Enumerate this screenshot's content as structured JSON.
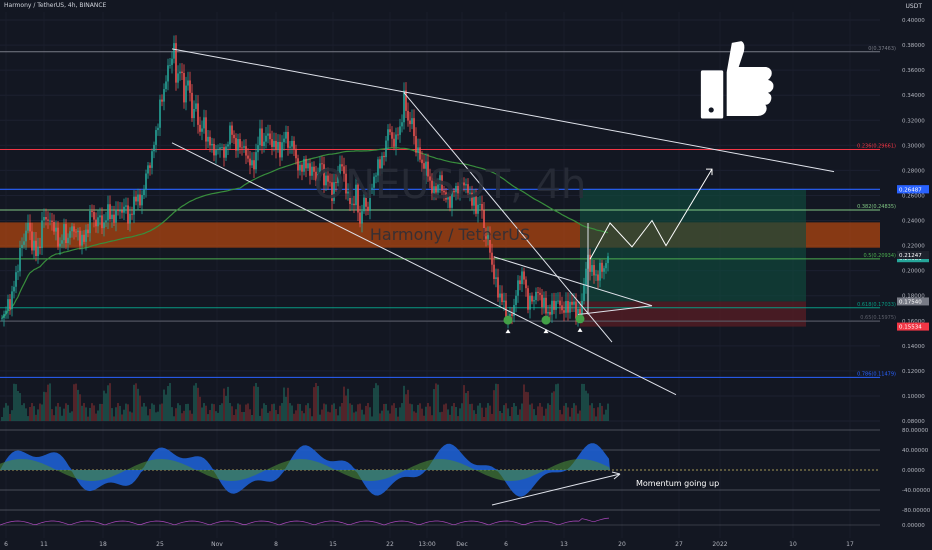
{
  "header": {
    "symbol_line": "Harmony / TetherUS, 4h, BINANCE"
  },
  "price_axis_caption": "USDT",
  "watermark": {
    "ticker": "ONEUSDT, 4h",
    "name": "Harmony / TetherUS"
  },
  "thumb_icon": "thumbs-up-icon",
  "momentum_label": "Momentum going up",
  "chart_data": {
    "type": "candlestick",
    "symbol": "ONEUSDT",
    "exchange": "BINANCE",
    "timeframe": "4h",
    "y_range": [
      0.07,
      0.41
    ],
    "y_ticks": [
      "0.40000",
      "0.38000",
      "0.36000",
      "0.34000",
      "0.32000",
      "0.30000",
      "0.28000",
      "0.26000",
      "0.24000",
      "0.22000",
      "0.20000",
      "0.18000",
      "0.16000",
      "0.14000",
      "0.12000",
      "0.10000",
      "0.08000"
    ],
    "x_ticks": [
      "6",
      "11",
      "18",
      "25",
      "Nov",
      "8",
      "15",
      "22",
      "13:00",
      "Dec",
      "6",
      "13",
      "20",
      "27",
      "2022",
      "10",
      "17"
    ],
    "close_path": [
      [
        0,
        0.162
      ],
      [
        4,
        0.166
      ],
      [
        8,
        0.172
      ],
      [
        12,
        0.18
      ],
      [
        16,
        0.196
      ],
      [
        20,
        0.214
      ],
      [
        24,
        0.226
      ],
      [
        28,
        0.237
      ],
      [
        32,
        0.222
      ],
      [
        36,
        0.214
      ],
      [
        40,
        0.222
      ],
      [
        44,
        0.246
      ],
      [
        48,
        0.238
      ],
      [
        52,
        0.24
      ],
      [
        56,
        0.228
      ],
      [
        60,
        0.22
      ],
      [
        64,
        0.232
      ],
      [
        68,
        0.224
      ],
      [
        72,
        0.236
      ],
      [
        76,
        0.23
      ],
      [
        80,
        0.226
      ],
      [
        84,
        0.224
      ],
      [
        88,
        0.236
      ],
      [
        92,
        0.248
      ],
      [
        96,
        0.236
      ],
      [
        100,
        0.244
      ],
      [
        104,
        0.233
      ],
      [
        108,
        0.252
      ],
      [
        112,
        0.238
      ],
      [
        116,
        0.248
      ],
      [
        120,
        0.246
      ],
      [
        124,
        0.252
      ],
      [
        128,
        0.242
      ],
      [
        132,
        0.246
      ],
      [
        136,
        0.262
      ],
      [
        140,
        0.252
      ],
      [
        144,
        0.268
      ],
      [
        148,
        0.282
      ],
      [
        152,
        0.292
      ],
      [
        156,
        0.31
      ],
      [
        160,
        0.33
      ],
      [
        164,
        0.345
      ],
      [
        168,
        0.36
      ],
      [
        172,
        0.372
      ],
      [
        174,
        0.377
      ],
      [
        176,
        0.352
      ],
      [
        180,
        0.362
      ],
      [
        184,
        0.34
      ],
      [
        188,
        0.352
      ],
      [
        192,
        0.326
      ],
      [
        196,
        0.33
      ],
      [
        200,
        0.31
      ],
      [
        204,
        0.318
      ],
      [
        208,
        0.302
      ],
      [
        212,
        0.3
      ],
      [
        216,
        0.292
      ],
      [
        220,
        0.302
      ],
      [
        224,
        0.29
      ],
      [
        228,
        0.306
      ],
      [
        232,
        0.312
      ],
      [
        236,
        0.298
      ],
      [
        240,
        0.302
      ],
      [
        244,
        0.296
      ],
      [
        248,
        0.29
      ],
      [
        252,
        0.282
      ],
      [
        256,
        0.292
      ],
      [
        260,
        0.31
      ],
      [
        264,
        0.3
      ],
      [
        268,
        0.312
      ],
      [
        272,
        0.298
      ],
      [
        276,
        0.303
      ],
      [
        280,
        0.292
      ],
      [
        284,
        0.31
      ],
      [
        288,
        0.3
      ],
      [
        292,
        0.302
      ],
      [
        296,
        0.29
      ],
      [
        300,
        0.278
      ],
      [
        304,
        0.288
      ],
      [
        308,
        0.28
      ],
      [
        312,
        0.282
      ],
      [
        316,
        0.272
      ],
      [
        320,
        0.286
      ],
      [
        324,
        0.274
      ],
      [
        328,
        0.272
      ],
      [
        332,
        0.262
      ],
      [
        336,
        0.27
      ],
      [
        340,
        0.286
      ],
      [
        344,
        0.276
      ],
      [
        348,
        0.258
      ],
      [
        352,
        0.252
      ],
      [
        356,
        0.262
      ],
      [
        360,
        0.238
      ],
      [
        364,
        0.256
      ],
      [
        368,
        0.25
      ],
      [
        372,
        0.27
      ],
      [
        376,
        0.278
      ],
      [
        380,
        0.288
      ],
      [
        384,
        0.29
      ],
      [
        388,
        0.316
      ],
      [
        392,
        0.302
      ],
      [
        396,
        0.306
      ],
      [
        400,
        0.312
      ],
      [
        404,
        0.338
      ],
      [
        408,
        0.32
      ],
      [
        412,
        0.318
      ],
      [
        416,
        0.298
      ],
      [
        420,
        0.29
      ],
      [
        424,
        0.28
      ],
      [
        428,
        0.28
      ],
      [
        432,
        0.262
      ],
      [
        436,
        0.266
      ],
      [
        440,
        0.272
      ],
      [
        444,
        0.262
      ],
      [
        448,
        0.254
      ],
      [
        452,
        0.26
      ],
      [
        456,
        0.266
      ],
      [
        460,
        0.266
      ],
      [
        464,
        0.272
      ],
      [
        468,
        0.262
      ],
      [
        472,
        0.258
      ],
      [
        476,
        0.248
      ],
      [
        480,
        0.256
      ],
      [
        484,
        0.23
      ],
      [
        488,
        0.225
      ],
      [
        492,
        0.205
      ],
      [
        496,
        0.188
      ],
      [
        500,
        0.18
      ],
      [
        504,
        0.172
      ],
      [
        508,
        0.16
      ],
      [
        512,
        0.166
      ],
      [
        516,
        0.18
      ],
      [
        520,
        0.196
      ],
      [
        524,
        0.194
      ],
      [
        528,
        0.174
      ],
      [
        532,
        0.176
      ],
      [
        536,
        0.182
      ],
      [
        540,
        0.18
      ],
      [
        544,
        0.172
      ],
      [
        548,
        0.166
      ],
      [
        552,
        0.17
      ],
      [
        556,
        0.176
      ],
      [
        560,
        0.172
      ],
      [
        564,
        0.168
      ],
      [
        568,
        0.172
      ],
      [
        572,
        0.174
      ],
      [
        576,
        0.168
      ],
      [
        580,
        0.164
      ],
      [
        584,
        0.19
      ],
      [
        588,
        0.21
      ],
      [
        592,
        0.2
      ],
      [
        596,
        0.195
      ],
      [
        600,
        0.2
      ],
      [
        604,
        0.203
      ],
      [
        608,
        0.209
      ]
    ],
    "fib_levels": [
      {
        "label": "0(0.37463)",
        "value": 0.37463,
        "color": "#787b86"
      },
      {
        "label": "0.236(0.29661)",
        "value": 0.29661,
        "color": "#f23645"
      },
      {
        "label": "0.382(0.24835)",
        "value": 0.24835,
        "color": "#81c784"
      },
      {
        "label": "0.5(0.20934)",
        "value": 0.20934,
        "color": "#4caf50"
      },
      {
        "label": "0.618(0.17033)",
        "value": 0.17033,
        "color": "#089981"
      },
      {
        "label": "0.65(0.15975)",
        "value": 0.15975,
        "color": "#5d606b"
      },
      {
        "label": "0.786(0.11479)",
        "value": 0.11479,
        "color": "#2962ff"
      }
    ],
    "blue_line_value": 0.26487,
    "resistance_zone": [
      0.2183,
      0.2385
    ],
    "position_box": {
      "target": 0.26487,
      "entry": 0.1754,
      "stop": 0.15534,
      "x_range": [
        580,
        806
      ]
    },
    "price_labels": [
      {
        "text": "0.26497",
        "value": 0.26497,
        "bg": "#2962ff"
      },
      {
        "text": "0.26487",
        "value": 0.26487,
        "bg": "#2962ff"
      },
      {
        "text": "0.20989",
        "value": 0.20989,
        "bg": "#26a69a"
      },
      {
        "text": "0.21247",
        "value": 0.21247,
        "bg": "#1e222d"
      },
      {
        "text": "0.17540",
        "value": 0.1754,
        "bg": "#787b86"
      },
      {
        "text": "0.15534",
        "value": 0.15534,
        "bg": "#f23645"
      }
    ],
    "indicator_ticks": [
      "80.00000",
      "40.00000",
      "0.00000",
      "-40.00000",
      "-80.00000"
    ],
    "bottom_tick": "0.00000",
    "hidden_plot_params": [
      "m"
    ]
  }
}
